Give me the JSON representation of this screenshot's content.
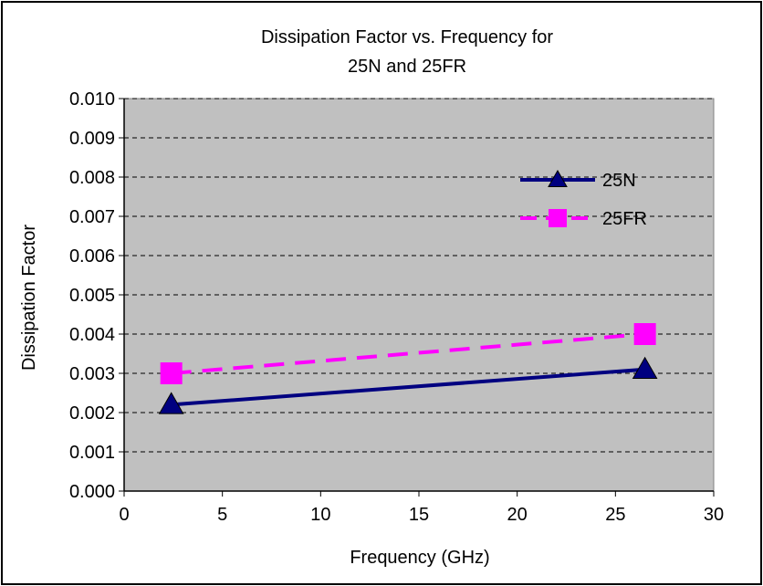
{
  "chart_data": {
    "type": "line",
    "title": [
      "Dissipation Factor vs. Frequency for",
      "25N  and  25FR"
    ],
    "xlabel": "Frequency (GHz)",
    "ylabel": "Dissipation Factor",
    "xlim": [
      0,
      30
    ],
    "ylim": [
      0,
      0.01
    ],
    "x_ticks": [
      "0",
      "5",
      "10",
      "15",
      "20",
      "25",
      "30"
    ],
    "y_ticks": [
      "0.000",
      "0.001",
      "0.002",
      "0.003",
      "0.004",
      "0.005",
      "0.006",
      "0.007",
      "0.008",
      "0.009",
      "0.010"
    ],
    "grid": "horizontal dashed",
    "plot_background": "#c0c0c0",
    "legend_position": "top-right",
    "series": [
      {
        "name": "25N",
        "x": [
          2.4,
          26.5
        ],
        "y": [
          0.0022,
          0.0031
        ],
        "color": "#000080",
        "line_style": "solid",
        "marker": "triangle"
      },
      {
        "name": "25FR",
        "x": [
          2.4,
          26.5
        ],
        "y": [
          0.003,
          0.004
        ],
        "color": "#ff00ff",
        "line_style": "dashed",
        "marker": "square"
      }
    ]
  }
}
